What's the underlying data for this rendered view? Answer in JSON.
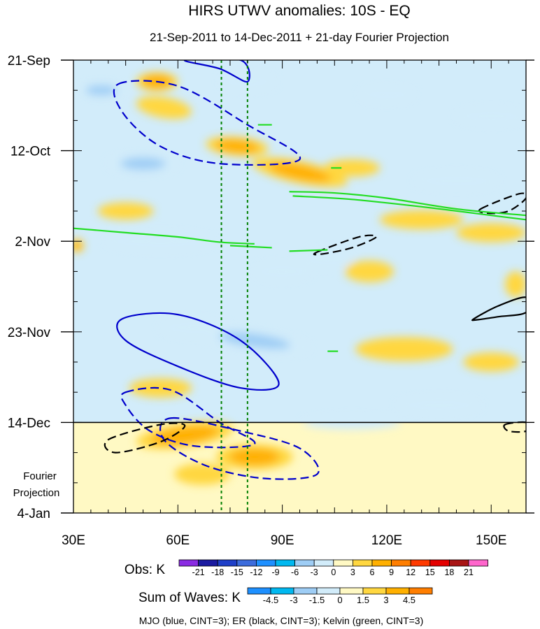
{
  "chart_data": {
    "type": "heatmap",
    "title": "HIRS UTWV anomalies: 10S - EQ",
    "subtitle": "21-Sep-2011 to 14-Dec-2011 + 21-day Fourier Projection",
    "x_axis": {
      "range": [
        30,
        160
      ],
      "ticks": [
        {
          "value": 30,
          "label": "30E"
        },
        {
          "value": 60,
          "label": "60E"
        },
        {
          "value": 90,
          "label": "90E"
        },
        {
          "value": 120,
          "label": "120E"
        },
        {
          "value": 150,
          "label": "150E"
        }
      ]
    },
    "y_axis": {
      "range_days": [
        0,
        105
      ],
      "ticks": [
        {
          "day": 0,
          "label": "21-Sep"
        },
        {
          "day": 21,
          "label": "12-Oct"
        },
        {
          "day": 42,
          "label": "2-Nov"
        },
        {
          "day": 63,
          "label": "23-Nov"
        },
        {
          "day": 84,
          "label": "14-Dec"
        },
        {
          "day": 105,
          "label": "4-Jan"
        }
      ]
    },
    "projection_label_1": "Fourier",
    "projection_label_2": "Projection",
    "projection_start_day": 84,
    "reference_longitudes": [
      72.5,
      80
    ],
    "obs_legend": {
      "title": "Obs: K",
      "labels": [
        "-21",
        "-18",
        "-15",
        "-12",
        "-9",
        "-6",
        "-3",
        "0",
        "3",
        "6",
        "9",
        "12",
        "15",
        "18",
        "21"
      ],
      "colors": [
        "#8a2be2",
        "#1a1aa0",
        "#1e3fc8",
        "#3c6cdc",
        "#1e90ff",
        "#00b8f0",
        "#9ecdf5",
        "#d2ecfa",
        "#fff9c4",
        "#ffd740",
        "#ffb000",
        "#ff7e00",
        "#ff3a00",
        "#e40000",
        "#a81414",
        "#ff66cc"
      ]
    },
    "waves_legend": {
      "title": "Sum of Waves: K",
      "labels": [
        "-4.5",
        "-3",
        "-1.5",
        "0",
        "1.5",
        "3",
        "4.5"
      ],
      "colors": [
        "#1e90ff",
        "#00b8f0",
        "#9ecdf5",
        "#d2ecfa",
        "#fff9c4",
        "#ffd740",
        "#ffb000",
        "#ff7e00"
      ]
    },
    "footer": "MJO (blue, CINT=3); ER (black, CINT=3); Kelvin (green, CINT=3)",
    "anomaly_features": [
      {
        "lon": 54,
        "day": 5,
        "rlon": 6,
        "rday": 2.2,
        "rot": 0,
        "value": 7.5
      },
      {
        "lon": 56,
        "day": 11,
        "rlon": 8,
        "rday": 2.4,
        "rot": 10,
        "value": 5
      },
      {
        "lon": 77,
        "day": 20,
        "rlon": 9,
        "rday": 2.2,
        "rot": 5,
        "value": 7
      },
      {
        "lon": 95,
        "day": 26,
        "rlon": 14,
        "rday": 2.6,
        "rot": 12,
        "value": 6
      },
      {
        "lon": 110,
        "day": 25,
        "rlon": 8,
        "rday": 2,
        "rot": 0,
        "value": 5
      },
      {
        "lon": 130,
        "day": 37,
        "rlon": 12,
        "rday": 2.2,
        "rot": 0,
        "value": 4
      },
      {
        "lon": 150,
        "day": 40,
        "rlon": 10,
        "rday": 2.2,
        "rot": 0,
        "value": 4
      },
      {
        "lon": 45,
        "day": 35,
        "rlon": 8,
        "rday": 2,
        "rot": 0,
        "value": 4
      },
      {
        "lon": 31,
        "day": 43,
        "rlon": 2,
        "rday": 1.6,
        "rot": 0,
        "value": 7
      },
      {
        "lon": 115,
        "day": 49,
        "rlon": 7,
        "rday": 2.5,
        "rot": 0,
        "value": 4
      },
      {
        "lon": 125,
        "day": 67,
        "rlon": 14,
        "rday": 2.8,
        "rot": 0,
        "value": 5
      },
      {
        "lon": 150,
        "day": 70,
        "rlon": 8,
        "rday": 2.2,
        "rot": 0,
        "value": 5
      },
      {
        "lon": 157,
        "day": 52,
        "rlon": 3,
        "rday": 3,
        "rot": 0,
        "value": 5
      },
      {
        "lon": 55,
        "day": 76,
        "rlon": 9,
        "rday": 2.2,
        "rot": 0,
        "value": 5
      },
      {
        "lon": 62,
        "day": 87,
        "rlon": 14,
        "rday": 2.8,
        "rot": -8,
        "value": 7
      },
      {
        "lon": 82,
        "day": 92,
        "rlon": 11,
        "rday": 3,
        "rot": 0,
        "value": 6
      },
      {
        "lon": 67,
        "day": 96,
        "rlon": 8,
        "rday": 2.5,
        "rot": 0,
        "value": 4
      },
      {
        "lon": 38,
        "day": 7,
        "rlon": 7,
        "rday": 1.8,
        "rot": 0,
        "value": -6
      },
      {
        "lon": 80,
        "day": 5,
        "rlon": 8,
        "rday": 2,
        "rot": 0,
        "value": -4
      },
      {
        "lon": 120,
        "day": 8,
        "rlon": 8,
        "rday": 1.8,
        "rot": 0,
        "value": -4
      },
      {
        "lon": 150,
        "day": 13,
        "rlon": 10,
        "rday": 2,
        "rot": 0,
        "value": -4
      },
      {
        "lon": 50,
        "day": 24,
        "rlon": 10,
        "rday": 2.2,
        "rot": 0,
        "value": -6
      },
      {
        "lon": 55,
        "day": 42,
        "rlon": 16,
        "rday": 2.2,
        "rot": 0,
        "value": -5
      },
      {
        "lon": 90,
        "day": 49,
        "rlon": 8,
        "rday": 2.2,
        "rot": 0,
        "value": -5
      },
      {
        "lon": 103,
        "day": 46,
        "rlon": 7,
        "rday": 2.4,
        "rot": 0,
        "value": -5
      },
      {
        "lon": 82,
        "day": 65,
        "rlon": 16,
        "rday": 2.4,
        "rot": 8,
        "value": -6
      },
      {
        "lon": 65,
        "day": 62,
        "rlon": 10,
        "rday": 2.2,
        "rot": 0,
        "value": -5
      },
      {
        "lon": 140,
        "day": 28,
        "rlon": 12,
        "rday": 2,
        "rot": 0,
        "value": -4
      },
      {
        "lon": 135,
        "day": 80,
        "rlon": 12,
        "rday": 2,
        "rot": 0,
        "value": -4
      },
      {
        "lon": 110,
        "day": 84,
        "rlon": 14,
        "rday": 1.6,
        "rot": 0,
        "value": -3
      }
    ],
    "wave_contours": [
      {
        "wave": "MJO",
        "color": "#0000cc",
        "dashed": false,
        "points": [
          [
            62,
            0
          ],
          [
            72,
            2
          ],
          [
            80,
            5
          ],
          [
            78,
            0
          ]
        ]
      },
      {
        "wave": "MJO",
        "color": "#0000cc",
        "dashed": true,
        "points": [
          [
            43,
            5.5
          ],
          [
            60,
            6
          ],
          [
            80,
            15
          ],
          [
            95,
            23
          ],
          [
            72,
            24
          ],
          [
            55,
            20
          ],
          [
            44,
            12
          ]
        ]
      },
      {
        "wave": "MJO",
        "color": "#0000cc",
        "dashed": false,
        "points": [
          [
            44,
            60
          ],
          [
            60,
            59
          ],
          [
            78,
            65
          ],
          [
            89,
            75
          ],
          [
            78,
            76
          ],
          [
            60,
            71
          ],
          [
            45,
            65
          ]
        ]
      },
      {
        "wave": "MJO",
        "color": "#0000cc",
        "dashed": true,
        "points": [
          [
            45,
            77
          ],
          [
            58,
            76.5
          ],
          [
            72,
            84
          ],
          [
            82,
            89
          ],
          [
            65,
            89.5
          ],
          [
            52,
            86
          ],
          [
            45,
            80
          ]
        ]
      },
      {
        "wave": "MJO",
        "color": "#0000cc",
        "dashed": true,
        "points": [
          [
            58,
            83
          ],
          [
            78,
            86
          ],
          [
            95,
            90
          ],
          [
            100,
            96
          ],
          [
            85,
            97
          ],
          [
            68,
            94
          ],
          [
            56,
            88
          ]
        ]
      },
      {
        "wave": "ER",
        "color": "#000000",
        "dashed": true,
        "points": [
          [
            40,
            88
          ],
          [
            55,
            84.5
          ],
          [
            62,
            84.8
          ],
          [
            55,
            88.5
          ],
          [
            42,
            91
          ]
        ]
      },
      {
        "wave": "ER",
        "color": "#000000",
        "dashed": true,
        "points": [
          [
            100,
            44.5
          ],
          [
            112,
            41
          ],
          [
            117,
            41
          ],
          [
            110,
            43.5
          ],
          [
            101,
            45
          ]
        ]
      },
      {
        "wave": "ER",
        "color": "#000000",
        "dashed": true,
        "points": [
          [
            147,
            34.5
          ],
          [
            158,
            31
          ],
          [
            160,
            32
          ],
          [
            155,
            35
          ],
          [
            149,
            35.5
          ]
        ]
      },
      {
        "wave": "ER",
        "color": "#000000",
        "dashed": false,
        "points": [
          [
            145,
            60
          ],
          [
            152,
            57
          ],
          [
            160,
            55
          ],
          [
            160,
            58.5
          ],
          [
            152,
            59.5
          ],
          [
            146,
            60.2
          ]
        ]
      },
      {
        "wave": "ER",
        "color": "#000000",
        "dashed": true,
        "points": [
          [
            154,
            84.5
          ],
          [
            160,
            84
          ],
          [
            160,
            86
          ],
          [
            155,
            86
          ]
        ]
      },
      {
        "wave": "Kelvin",
        "color": "#22dd22",
        "dashed": false,
        "points": [
          [
            30,
            39
          ],
          [
            45,
            40
          ],
          [
            60,
            41
          ],
          [
            72,
            42.2
          ],
          [
            82,
            42.6
          ]
        ]
      },
      {
        "wave": "Kelvin",
        "color": "#22dd22",
        "dashed": false,
        "points": [
          [
            75,
            43
          ],
          [
            87,
            43.5
          ]
        ]
      },
      {
        "wave": "Kelvin",
        "color": "#22dd22",
        "dashed": false,
        "points": [
          [
            92,
            44.3
          ],
          [
            103,
            44
          ]
        ]
      },
      {
        "wave": "Kelvin",
        "color": "#22dd22",
        "dashed": false,
        "points": [
          [
            92,
            30.5
          ],
          [
            105,
            30.8
          ],
          [
            120,
            32
          ],
          [
            140,
            34.5
          ],
          [
            160,
            36
          ]
        ]
      },
      {
        "wave": "Kelvin",
        "color": "#22dd22",
        "dashed": false,
        "points": [
          [
            93,
            31.5
          ],
          [
            110,
            32.3
          ],
          [
            130,
            34
          ],
          [
            150,
            36
          ],
          [
            160,
            37
          ]
        ]
      },
      {
        "wave": "Kelvin",
        "color": "#22dd22",
        "dashed": false,
        "points": [
          [
            83,
            15
          ],
          [
            87,
            15
          ]
        ]
      },
      {
        "wave": "Kelvin",
        "color": "#22dd22",
        "dashed": false,
        "points": [
          [
            104,
            25
          ],
          [
            107,
            25
          ]
        ]
      },
      {
        "wave": "Kelvin",
        "color": "#22dd22",
        "dashed": false,
        "points": [
          [
            103,
            67.5
          ],
          [
            106,
            67.5
          ]
        ]
      }
    ]
  }
}
